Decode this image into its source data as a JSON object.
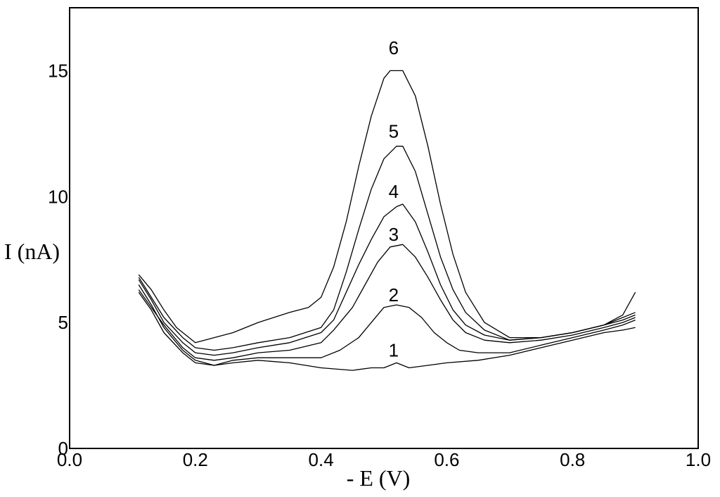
{
  "chart_data": {
    "type": "line",
    "xlabel": "- E (V)",
    "ylabel": "I (nA)",
    "xlim": [
      0.0,
      1.0
    ],
    "ylim": [
      0,
      17.5
    ],
    "xticks": [
      "0.0",
      "0.2",
      "0.4",
      "0.6",
      "0.8",
      "1.0"
    ],
    "yticks": [
      "0",
      "5",
      "10",
      "15"
    ],
    "grid": false,
    "legend": "none",
    "line_color": "#000000",
    "series": [
      {
        "label": "1",
        "x": [
          0.11,
          0.13,
          0.15,
          0.18,
          0.2,
          0.23,
          0.26,
          0.3,
          0.35,
          0.4,
          0.45,
          0.48,
          0.5,
          0.52,
          0.54,
          0.57,
          0.6,
          0.65,
          0.7,
          0.75,
          0.8,
          0.85,
          0.88,
          0.9
        ],
        "y": [
          6.2,
          5.5,
          4.6,
          3.8,
          3.4,
          3.3,
          3.4,
          3.5,
          3.4,
          3.2,
          3.1,
          3.2,
          3.2,
          3.4,
          3.2,
          3.3,
          3.4,
          3.5,
          3.7,
          4.0,
          4.3,
          4.6,
          4.7,
          4.8
        ],
        "label_pos": [
          0.52,
          3.9
        ]
      },
      {
        "label": "2",
        "x": [
          0.11,
          0.13,
          0.15,
          0.18,
          0.2,
          0.23,
          0.26,
          0.3,
          0.35,
          0.4,
          0.43,
          0.46,
          0.48,
          0.5,
          0.52,
          0.54,
          0.56,
          0.58,
          0.6,
          0.62,
          0.65,
          0.7,
          0.75,
          0.8,
          0.85,
          0.88,
          0.9
        ],
        "y": [
          6.5,
          5.7,
          4.8,
          3.9,
          3.5,
          3.3,
          3.5,
          3.6,
          3.6,
          3.6,
          3.9,
          4.4,
          5.0,
          5.6,
          5.7,
          5.6,
          5.2,
          4.6,
          4.2,
          3.9,
          3.8,
          3.8,
          4.1,
          4.4,
          4.7,
          4.9,
          5.1
        ],
        "label_pos": [
          0.52,
          6.1
        ]
      },
      {
        "label": "3",
        "x": [
          0.11,
          0.13,
          0.15,
          0.18,
          0.2,
          0.23,
          0.26,
          0.3,
          0.35,
          0.4,
          0.42,
          0.45,
          0.47,
          0.49,
          0.51,
          0.53,
          0.55,
          0.57,
          0.59,
          0.61,
          0.63,
          0.66,
          0.7,
          0.75,
          0.8,
          0.85,
          0.88,
          0.9
        ],
        "y": [
          6.3,
          5.6,
          4.9,
          4.0,
          3.6,
          3.5,
          3.6,
          3.8,
          3.9,
          4.2,
          4.7,
          5.6,
          6.5,
          7.4,
          8.0,
          8.1,
          7.6,
          6.8,
          5.9,
          5.1,
          4.6,
          4.3,
          4.2,
          4.3,
          4.5,
          4.8,
          5.0,
          5.2
        ],
        "label_pos": [
          0.52,
          8.5
        ]
      },
      {
        "label": "4",
        "x": [
          0.11,
          0.13,
          0.15,
          0.18,
          0.2,
          0.23,
          0.26,
          0.3,
          0.35,
          0.4,
          0.42,
          0.44,
          0.46,
          0.48,
          0.5,
          0.52,
          0.53,
          0.55,
          0.57,
          0.59,
          0.61,
          0.63,
          0.66,
          0.7,
          0.75,
          0.8,
          0.85,
          0.88,
          0.9
        ],
        "y": [
          6.7,
          5.9,
          5.0,
          4.2,
          3.8,
          3.7,
          3.8,
          4.0,
          4.2,
          4.6,
          5.1,
          6.2,
          7.3,
          8.3,
          9.2,
          9.6,
          9.7,
          9.0,
          7.8,
          6.5,
          5.5,
          4.9,
          4.5,
          4.3,
          4.4,
          4.6,
          4.9,
          5.1,
          5.3
        ],
        "label_pos": [
          0.52,
          10.2
        ]
      },
      {
        "label": "5",
        "x": [
          0.11,
          0.13,
          0.15,
          0.18,
          0.2,
          0.23,
          0.26,
          0.3,
          0.35,
          0.4,
          0.42,
          0.44,
          0.46,
          0.48,
          0.5,
          0.52,
          0.53,
          0.55,
          0.57,
          0.59,
          0.61,
          0.63,
          0.66,
          0.7,
          0.75,
          0.8,
          0.85,
          0.88,
          0.9
        ],
        "y": [
          6.8,
          6.0,
          5.2,
          4.4,
          4.0,
          3.9,
          4.0,
          4.2,
          4.4,
          4.8,
          5.5,
          7.0,
          8.7,
          10.3,
          11.5,
          12.0,
          12.0,
          11.0,
          9.3,
          7.6,
          6.3,
          5.4,
          4.7,
          4.3,
          4.4,
          4.6,
          4.9,
          5.2,
          5.4
        ],
        "label_pos": [
          0.52,
          12.6
        ]
      },
      {
        "label": "6",
        "x": [
          0.11,
          0.13,
          0.15,
          0.17,
          0.2,
          0.23,
          0.26,
          0.3,
          0.35,
          0.38,
          0.4,
          0.42,
          0.44,
          0.46,
          0.48,
          0.5,
          0.51,
          0.53,
          0.55,
          0.57,
          0.59,
          0.61,
          0.63,
          0.66,
          0.7,
          0.75,
          0.8,
          0.85,
          0.88,
          0.9
        ],
        "y": [
          6.9,
          6.3,
          5.5,
          4.8,
          4.2,
          4.4,
          4.6,
          5.0,
          5.4,
          5.6,
          6.0,
          7.2,
          9.0,
          11.2,
          13.2,
          14.7,
          15.0,
          15.0,
          14.0,
          12.0,
          9.7,
          7.7,
          6.2,
          5.0,
          4.4,
          4.4,
          4.6,
          4.9,
          5.3,
          6.2
        ],
        "label_pos": [
          0.52,
          15.9
        ]
      }
    ]
  }
}
